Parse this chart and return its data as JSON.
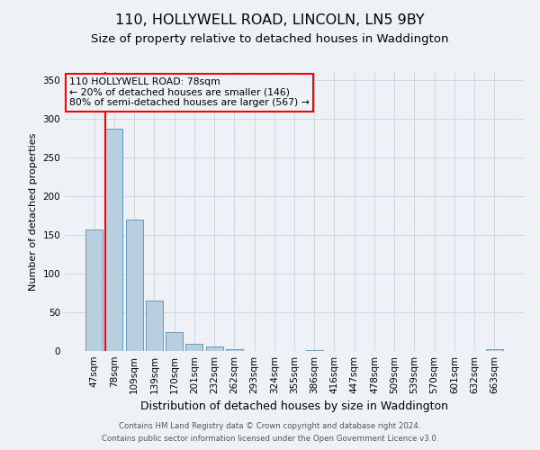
{
  "title": "110, HOLLYWELL ROAD, LINCOLN, LN5 9BY",
  "subtitle": "Size of property relative to detached houses in Waddington",
  "xlabel": "Distribution of detached houses by size in Waddington",
  "ylabel": "Number of detached properties",
  "bar_labels": [
    "47sqm",
    "78sqm",
    "109sqm",
    "139sqm",
    "170sqm",
    "201sqm",
    "232sqm",
    "262sqm",
    "293sqm",
    "324sqm",
    "355sqm",
    "386sqm",
    "416sqm",
    "447sqm",
    "478sqm",
    "509sqm",
    "539sqm",
    "570sqm",
    "601sqm",
    "632sqm",
    "663sqm"
  ],
  "bar_heights": [
    157,
    287,
    170,
    65,
    24,
    9,
    6,
    2,
    0,
    0,
    0,
    1,
    0,
    0,
    0,
    0,
    0,
    0,
    0,
    0,
    2
  ],
  "bar_color": "#b8cfe0",
  "bar_edge_color": "#6699bb",
  "vline_color": "red",
  "vline_index": 1,
  "annotation_title": "110 HOLLYWELL ROAD: 78sqm",
  "annotation_line1": "← 20% of detached houses are smaller (146)",
  "annotation_line2": "80% of semi-detached houses are larger (567) →",
  "annotation_box_color": "red",
  "ylim": [
    0,
    360
  ],
  "yticks": [
    0,
    50,
    100,
    150,
    200,
    250,
    300,
    350
  ],
  "footer1": "Contains HM Land Registry data © Crown copyright and database right 2024.",
  "footer2": "Contains public sector information licensed under the Open Government Licence v3.0.",
  "background_color": "#eef2f7",
  "title_fontsize": 11.5,
  "subtitle_fontsize": 9.5,
  "ylabel_fontsize": 8,
  "xlabel_fontsize": 9,
  "tick_fontsize": 7.5,
  "footer_fontsize": 6.2
}
